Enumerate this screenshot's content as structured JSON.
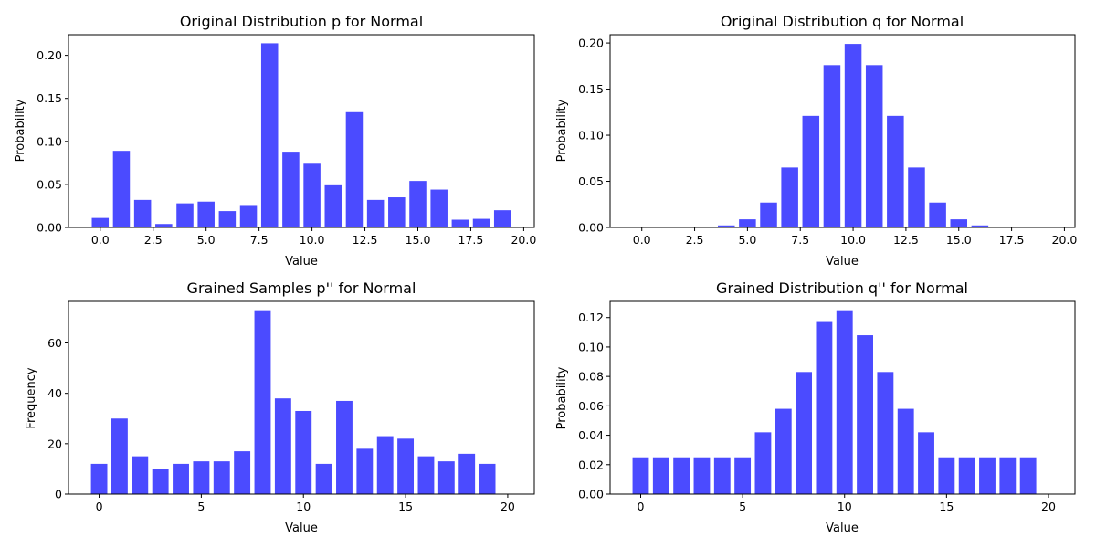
{
  "colors": {
    "bar": "#4b4bff"
  },
  "chart_data": [
    {
      "type": "bar",
      "title": "Original Distribution p for Normal",
      "xlabel": "Value",
      "ylabel": "Probability",
      "x": [
        0,
        1,
        2,
        3,
        4,
        5,
        6,
        7,
        8,
        9,
        10,
        11,
        12,
        13,
        14,
        15,
        16,
        17,
        18,
        19
      ],
      "values": [
        0.011,
        0.089,
        0.032,
        0.004,
        0.028,
        0.03,
        0.019,
        0.025,
        0.214,
        0.088,
        0.074,
        0.049,
        0.134,
        0.032,
        0.035,
        0.054,
        0.044,
        0.009,
        0.01,
        0.02
      ],
      "xlim": [
        -1.5,
        20.5
      ],
      "ylim": [
        0,
        0.224
      ],
      "xticks": [
        0,
        2.5,
        5,
        7.5,
        10,
        12.5,
        15,
        17.5,
        20
      ],
      "xtick_labels": [
        "0.0",
        "2.5",
        "5.0",
        "7.5",
        "10.0",
        "12.5",
        "15.0",
        "17.5",
        "20.0"
      ],
      "yticks": [
        0,
        0.05,
        0.1,
        0.15,
        0.2
      ],
      "ytick_labels": [
        "0.00",
        "0.05",
        "0.10",
        "0.15",
        "0.20"
      ],
      "grid": false
    },
    {
      "type": "bar",
      "title": "Original Distribution q for Normal",
      "xlabel": "Value",
      "ylabel": "Probability",
      "x": [
        0,
        1,
        2,
        3,
        4,
        5,
        6,
        7,
        8,
        9,
        10,
        11,
        12,
        13,
        14,
        15,
        16,
        17,
        18,
        19
      ],
      "values": [
        0.0,
        0.0,
        0.0,
        0.0,
        0.0022,
        0.0088,
        0.027,
        0.065,
        0.121,
        0.176,
        0.199,
        0.176,
        0.121,
        0.065,
        0.027,
        0.0088,
        0.0022,
        0.0,
        0.0,
        0.0
      ],
      "xlim": [
        -1.5,
        20.5
      ],
      "ylim": [
        0,
        0.209
      ],
      "xticks": [
        0,
        2.5,
        5,
        7.5,
        10,
        12.5,
        15,
        17.5,
        20
      ],
      "xtick_labels": [
        "0.0",
        "2.5",
        "5.0",
        "7.5",
        "10.0",
        "12.5",
        "15.0",
        "17.5",
        "20.0"
      ],
      "yticks": [
        0,
        0.05,
        0.1,
        0.15,
        0.2
      ],
      "ytick_labels": [
        "0.00",
        "0.05",
        "0.10",
        "0.15",
        "0.20"
      ],
      "grid": false
    },
    {
      "type": "bar",
      "title": "Grained Samples p'' for Normal",
      "xlabel": "Value",
      "ylabel": "Frequency",
      "x": [
        0,
        1,
        2,
        3,
        4,
        5,
        6,
        7,
        8,
        9,
        10,
        11,
        12,
        13,
        14,
        15,
        16,
        17,
        18,
        19
      ],
      "values": [
        12,
        30,
        15,
        10,
        12,
        13,
        13,
        17,
        73,
        38,
        33,
        12,
        37,
        18,
        23,
        22,
        15,
        13,
        16,
        12
      ],
      "xlim": [
        -1.5,
        21.3
      ],
      "ylim": [
        0,
        76.5
      ],
      "xticks": [
        0,
        5,
        10,
        15,
        20
      ],
      "xtick_labels": [
        "0",
        "5",
        "10",
        "15",
        "20"
      ],
      "yticks": [
        0,
        20,
        40,
        60
      ],
      "ytick_labels": [
        "0",
        "20",
        "40",
        "60"
      ],
      "grid": false
    },
    {
      "type": "bar",
      "title": "Grained Distribution q'' for Normal",
      "xlabel": "Value",
      "ylabel": "Probability",
      "x": [
        0,
        1,
        2,
        3,
        4,
        5,
        6,
        7,
        8,
        9,
        10,
        11,
        12,
        13,
        14,
        15,
        16,
        17,
        18,
        19
      ],
      "values": [
        0.025,
        0.025,
        0.025,
        0.025,
        0.025,
        0.025,
        0.042,
        0.058,
        0.083,
        0.117,
        0.125,
        0.108,
        0.083,
        0.058,
        0.042,
        0.025,
        0.025,
        0.025,
        0.025,
        0.025
      ],
      "xlim": [
        -1.5,
        21.3
      ],
      "ylim": [
        0,
        0.131
      ],
      "xticks": [
        0,
        5,
        10,
        15,
        20
      ],
      "xtick_labels": [
        "0",
        "5",
        "10",
        "15",
        "20"
      ],
      "yticks": [
        0,
        0.02,
        0.04,
        0.06,
        0.08,
        0.1,
        0.12
      ],
      "ytick_labels": [
        "0.00",
        "0.02",
        "0.04",
        "0.06",
        "0.08",
        "0.10",
        "0.12"
      ],
      "grid": false
    }
  ]
}
